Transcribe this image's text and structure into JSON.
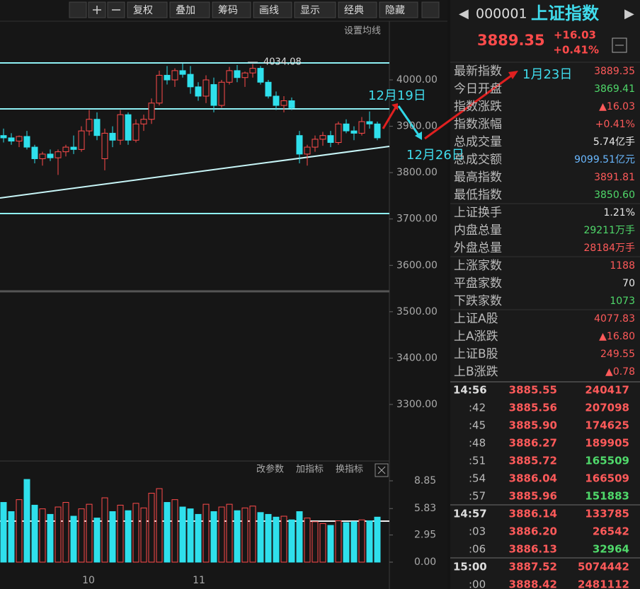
{
  "toolbar": {
    "buttons": [
      "复权",
      "叠加",
      "筹码",
      "画线",
      "显示",
      "经典",
      "隐藏"
    ],
    "ma_setting": "设置均线"
  },
  "price_axis": {
    "ticks": [
      {
        "value": 4000,
        "label": "4000.00"
      },
      {
        "value": 3900,
        "label": "3900.00"
      },
      {
        "value": 3800,
        "label": "3800.00"
      },
      {
        "value": 3700,
        "label": "3700.00"
      },
      {
        "value": 3600,
        "label": "3600.00"
      },
      {
        "value": 3500,
        "label": "3500.00"
      },
      {
        "value": 3400,
        "label": "3400.00"
      },
      {
        "value": 3300,
        "label": "3300.00"
      }
    ]
  },
  "high_label": {
    "value": 4034.08,
    "label": "4034.08"
  },
  "annotations": [
    "12月19日",
    "12月26日",
    "1月23日"
  ],
  "candles": [
    {
      "open": 3880,
      "high": 3895,
      "low": 3865,
      "close": 3875
    },
    {
      "open": 3875,
      "high": 3885,
      "low": 3860,
      "close": 3868
    },
    {
      "open": 3868,
      "high": 3880,
      "low": 3855,
      "close": 3878
    },
    {
      "open": 3878,
      "high": 3890,
      "low": 3850,
      "close": 3855
    },
    {
      "open": 3855,
      "high": 3860,
      "low": 3820,
      "close": 3830
    },
    {
      "open": 3830,
      "high": 3845,
      "low": 3815,
      "close": 3840
    },
    {
      "open": 3840,
      "high": 3850,
      "low": 3825,
      "close": 3832
    },
    {
      "open": 3832,
      "high": 3850,
      "low": 3795,
      "close": 3845
    },
    {
      "open": 3845,
      "high": 3860,
      "low": 3835,
      "close": 3855
    },
    {
      "open": 3855,
      "high": 3880,
      "low": 3840,
      "close": 3850
    },
    {
      "open": 3850,
      "high": 3900,
      "low": 3845,
      "close": 3890
    },
    {
      "open": 3890,
      "high": 3935,
      "low": 3880,
      "close": 3915
    },
    {
      "open": 3915,
      "high": 3930,
      "low": 3870,
      "close": 3880
    },
    {
      "open": 3830,
      "high": 3895,
      "low": 3805,
      "close": 3885
    },
    {
      "open": 3885,
      "high": 3900,
      "low": 3855,
      "close": 3870
    },
    {
      "open": 3870,
      "high": 3935,
      "low": 3860,
      "close": 3925
    },
    {
      "open": 3925,
      "high": 3930,
      "low": 3860,
      "close": 3870
    },
    {
      "open": 3870,
      "high": 3915,
      "low": 3865,
      "close": 3905
    },
    {
      "open": 3905,
      "high": 3925,
      "low": 3890,
      "close": 3915
    },
    {
      "open": 3915,
      "high": 3960,
      "low": 3905,
      "close": 3950
    },
    {
      "open": 3950,
      "high": 4020,
      "low": 3945,
      "close": 4010
    },
    {
      "open": 4010,
      "high": 4030,
      "low": 3990,
      "close": 4000
    },
    {
      "open": 4000,
      "high": 4025,
      "low": 3985,
      "close": 4020
    },
    {
      "open": 4020,
      "high": 4035,
      "low": 4005,
      "close": 4012
    },
    {
      "open": 4012,
      "high": 4030,
      "low": 3970,
      "close": 3985
    },
    {
      "open": 3985,
      "high": 3995,
      "low": 3955,
      "close": 3965
    },
    {
      "open": 3965,
      "high": 4010,
      "low": 3950,
      "close": 4000
    },
    {
      "open": 3990,
      "high": 4005,
      "low": 3930,
      "close": 3945
    },
    {
      "open": 3945,
      "high": 4000,
      "low": 3940,
      "close": 3995
    },
    {
      "open": 3995,
      "high": 4028,
      "low": 3990,
      "close": 4020
    },
    {
      "open": 4020,
      "high": 4032,
      "low": 3995,
      "close": 4005
    },
    {
      "open": 4005,
      "high": 4018,
      "low": 3985,
      "close": 4015
    },
    {
      "open": 4015,
      "high": 4034.08,
      "low": 4005,
      "close": 4025
    },
    {
      "open": 4025,
      "high": 4030,
      "low": 3990,
      "close": 3995
    },
    {
      "open": 3995,
      "high": 4000,
      "low": 3960,
      "close": 3965
    },
    {
      "open": 3965,
      "high": 3975,
      "low": 3935,
      "close": 3945
    },
    {
      "open": 3945,
      "high": 3965,
      "low": 3930,
      "close": 3955
    },
    {
      "open": 3955,
      "high": 3962,
      "low": 3935,
      "close": 3940
    },
    {
      "open": 3880,
      "high": 3890,
      "low": 3820,
      "close": 3840
    },
    {
      "open": 3840,
      "high": 3860,
      "low": 3815,
      "close": 3855
    },
    {
      "open": 3855,
      "high": 3880,
      "low": 3845,
      "close": 3872
    },
    {
      "open": 3872,
      "high": 3888,
      "low": 3858,
      "close": 3880
    },
    {
      "open": 3880,
      "high": 3890,
      "low": 3855,
      "close": 3865
    },
    {
      "open": 3865,
      "high": 3910,
      "low": 3860,
      "close": 3905
    },
    {
      "open": 3905,
      "high": 3915,
      "low": 3885,
      "close": 3890
    },
    {
      "open": 3890,
      "high": 3900,
      "low": 3870,
      "close": 3885
    },
    {
      "open": 3885,
      "high": 3920,
      "low": 3880,
      "close": 3910
    },
    {
      "open": 3910,
      "high": 3932,
      "low": 3895,
      "close": 3905
    },
    {
      "open": 3905,
      "high": 3910,
      "low": 3870,
      "close": 3875
    }
  ],
  "volume_tools": [
    "改参数",
    "加指标",
    "换指标"
  ],
  "volumes": [
    6.5,
    5.5,
    6.8,
    9.0,
    6.2,
    5.8,
    5.2,
    6.0,
    6.5,
    5.0,
    5.8,
    6.3,
    4.8,
    7.0,
    5.5,
    6.2,
    5.6,
    6.4,
    5.9,
    7.5,
    8.0,
    6.5,
    6.8,
    6.0,
    5.8,
    5.2,
    6.3,
    5.5,
    6.0,
    6.3,
    5.6,
    5.9,
    6.1,
    5.4,
    5.2,
    4.9,
    5.0,
    4.6,
    5.5,
    4.8,
    4.4,
    4.2,
    4.0,
    4.5,
    4.3,
    4.4,
    4.6,
    4.5,
    4.9
  ],
  "volume_axis": {
    "ticks": [
      {
        "value": 8.85,
        "label": "8.85"
      },
      {
        "value": 5.83,
        "label": "5.83"
      },
      {
        "value": 2.95,
        "label": "2.95"
      },
      {
        "value": 0,
        "label": "0.00"
      }
    ]
  },
  "x_axis": [
    "10",
    "11"
  ],
  "quote": {
    "code": "000001",
    "name": "上证指数",
    "price": "3889.35",
    "change": "+16.03",
    "pct": "+0.41%"
  },
  "stats": [
    {
      "label": "最新指数",
      "value": "3889.35",
      "color": "#ff5a5a"
    },
    {
      "label": "今日开盘",
      "value": "3869.41",
      "color": "#4fd86a"
    },
    {
      "label": "指数涨跌",
      "value": "▲16.03",
      "color": "#ff5a5a"
    },
    {
      "label": "指数涨幅",
      "value": "+0.41%",
      "color": "#ff5a5a"
    },
    {
      "label": "总成交量",
      "value": "5.74亿手",
      "color": "#e8e8e8"
    },
    {
      "label": "总成交额",
      "value": "9099.51亿元",
      "color": "#6ab8ff"
    },
    {
      "label": "最高指数",
      "value": "3891.81",
      "color": "#ff5a5a"
    },
    {
      "label": "最低指数",
      "value": "3850.60",
      "color": "#4fd86a"
    },
    {
      "label": "上证换手",
      "value": "1.21%",
      "color": "#e8e8e8"
    },
    {
      "label": "内盘总量",
      "value": "29211万手",
      "color": "#4fd86a"
    },
    {
      "label": "外盘总量",
      "value": "28184万手",
      "color": "#ff5a5a"
    },
    {
      "label": "上涨家数",
      "value": "1188",
      "color": "#ff5a5a"
    },
    {
      "label": "平盘家数",
      "value": "70",
      "color": "#e8e8e8"
    },
    {
      "label": "下跌家数",
      "value": "1073",
      "color": "#4fd86a"
    },
    {
      "label": "上证A股",
      "value": "4077.83",
      "color": "#ff5a5a"
    },
    {
      "label": "上A涨跌",
      "value": "▲16.80",
      "color": "#ff5a5a"
    },
    {
      "label": "上证B股",
      "value": "249.55",
      "color": "#ff5a5a"
    },
    {
      "label": "上B涨跌",
      "value": "▲0.78",
      "color": "#ff5a5a"
    }
  ],
  "ticks": [
    {
      "time": "14:56",
      "price": "3885.55",
      "vol": "240417",
      "color": "#ff5a5a"
    },
    {
      "time": ":42",
      "price": "3885.56",
      "vol": "207098",
      "color": "#ff5a5a"
    },
    {
      "time": ":45",
      "price": "3885.90",
      "vol": "174625",
      "color": "#ff5a5a"
    },
    {
      "time": ":48",
      "price": "3886.27",
      "vol": "189905",
      "color": "#ff5a5a"
    },
    {
      "time": ":51",
      "price": "3885.72",
      "vol": "165509",
      "color": "#4fd86a"
    },
    {
      "time": ":54",
      "price": "3886.04",
      "vol": "166509",
      "color": "#ff5a5a"
    },
    {
      "time": ":57",
      "price": "3885.96",
      "vol": "151883",
      "color": "#4fd86a"
    },
    {
      "time": "14:57",
      "price": "3886.14",
      "vol": "133785",
      "color": "#ff5a5a"
    },
    {
      "time": ":03",
      "price": "3886.20",
      "vol": "26542",
      "color": "#ff5a5a"
    },
    {
      "time": ":06",
      "price": "3886.13",
      "vol": "32964",
      "color": "#4fd86a"
    },
    {
      "time": "15:00",
      "price": "3887.52",
      "vol": "5074442",
      "color": "#ff5a5a"
    },
    {
      "time": ":00",
      "price": "3888.42",
      "vol": "2481112",
      "color": "#ff5a5a"
    }
  ]
}
